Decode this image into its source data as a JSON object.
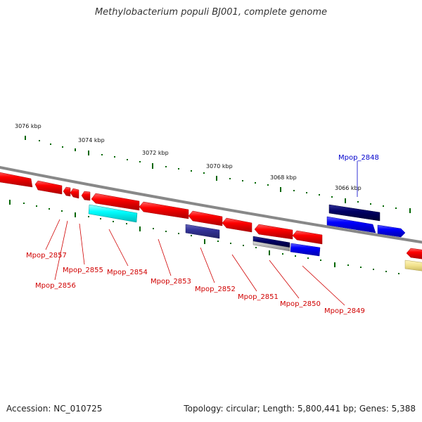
{
  "title": "Methylobacterium populi BJ001, complete genome",
  "footer": {
    "accession": "Accession: NC_010725",
    "summary": "Topology: circular; Length: 5,800,441 bp; Genes: 5,388"
  },
  "scale_labels": [
    "3076 kbp",
    "3074 kbp",
    "3072 kbp",
    "3070 kbp",
    "3068 kbp",
    "3066 kbp"
  ],
  "gene_labels": [
    "Mpop_2857",
    "Mpop_2856",
    "Mpop_2855",
    "Mpop_2854",
    "Mpop_2853",
    "Mpop_2852",
    "Mpop_2851",
    "Mpop_2850",
    "Mpop_2849",
    "Mpop_2848"
  ],
  "colors": {
    "forward_gene": "#ff0000",
    "reverse_gene": "#0000ff",
    "navy_gene": "#000066",
    "cyan_gene": "#00ffff",
    "slate_gene": "#333399",
    "pale_gene": "#f0e08a",
    "backbone": "#888888",
    "ticks": "#006600",
    "label_red": "#d00000",
    "label_blue": "#0000cc"
  }
}
